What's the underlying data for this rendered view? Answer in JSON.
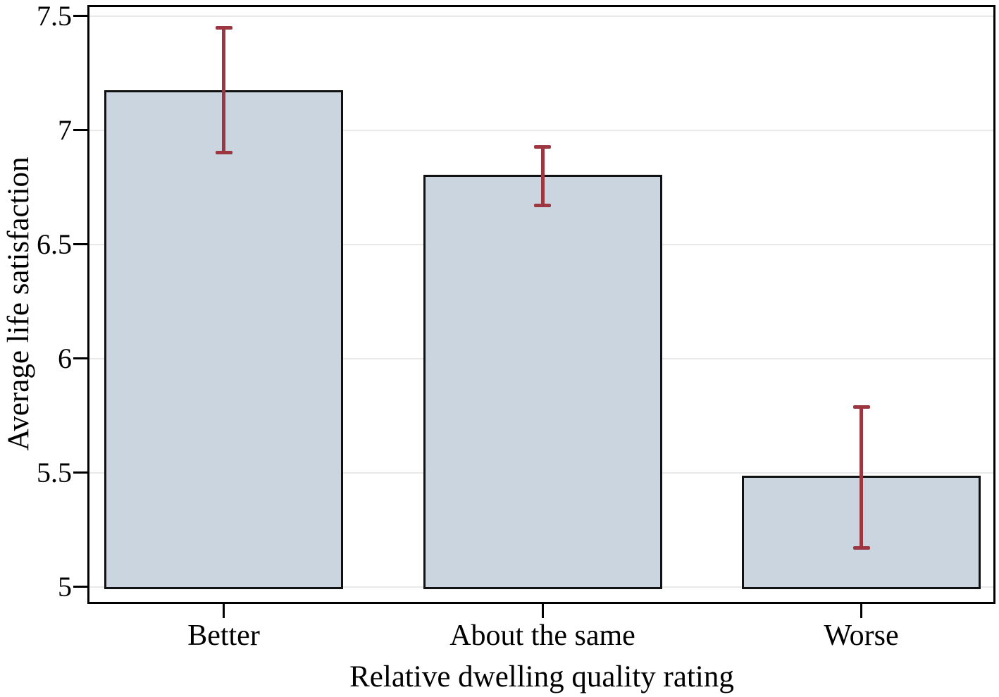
{
  "chart_data": {
    "type": "bar",
    "title": "",
    "categories": [
      "Better",
      "About the same",
      "Worse"
    ],
    "series": [
      {
        "name": "Average life satisfaction",
        "values": [
          7.17,
          6.8,
          5.48
        ],
        "ci_low": [
          6.9,
          6.67,
          5.17
        ],
        "ci_high": [
          7.45,
          6.93,
          5.79
        ]
      }
    ],
    "xlabel": "Relative dwelling quality rating",
    "ylabel": "Average life satisfaction",
    "ylim": [
      5,
      7.5
    ],
    "yticks": [
      5,
      5.5,
      6,
      6.5,
      7,
      7.5
    ],
    "ytick_labels": [
      "5",
      "5.5",
      "6",
      "6.5",
      "7",
      "7.5"
    ],
    "grid": "horizontal",
    "legend": "none",
    "colors": {
      "bar_fill": "#cbd5df",
      "bar_border": "#111111",
      "error_bar": "#9c3640",
      "gridline": "#e9e9e9",
      "axis": "#000000",
      "text": "#000000",
      "background": "#ffffff"
    }
  }
}
